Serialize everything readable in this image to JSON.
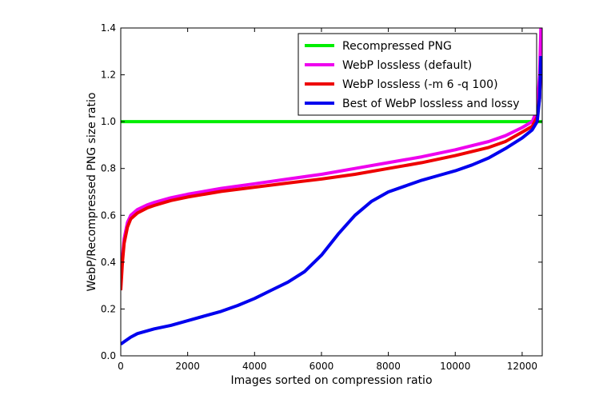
{
  "chart_data": {
    "type": "line",
    "title": "",
    "xlabel": "Images sorted on compression ratio",
    "ylabel": "WebP/Recompressed PNG size ratio",
    "xlim": [
      0,
      12600
    ],
    "ylim": [
      0.0,
      1.4
    ],
    "xticks": [
      0,
      2000,
      4000,
      6000,
      8000,
      10000,
      12000
    ],
    "yticks": [
      0.0,
      0.2,
      0.4,
      0.6,
      0.8,
      1.0,
      1.2,
      1.4
    ],
    "grid": false,
    "legend_position": "top-right",
    "series": [
      {
        "name": "Recompressed PNG",
        "color": "#00ee00",
        "x": [
          0,
          12600
        ],
        "y": [
          1.0,
          1.0
        ]
      },
      {
        "name": "WebP lossless (default)",
        "color": "#ee00ee",
        "x": [
          0,
          50,
          100,
          200,
          300,
          500,
          800,
          1000,
          1500,
          2000,
          3000,
          4000,
          5000,
          6000,
          7000,
          8000,
          9000,
          10000,
          11000,
          11500,
          12000,
          12300,
          12450,
          12520,
          12560
        ],
        "y": [
          0.3,
          0.42,
          0.5,
          0.57,
          0.6,
          0.625,
          0.645,
          0.655,
          0.675,
          0.69,
          0.715,
          0.735,
          0.755,
          0.775,
          0.8,
          0.825,
          0.85,
          0.88,
          0.915,
          0.94,
          0.975,
          1.0,
          1.05,
          1.2,
          1.4
        ]
      },
      {
        "name": "WebP lossless (-m 6 -q 100)",
        "color": "#ee0000",
        "x": [
          0,
          50,
          100,
          200,
          300,
          500,
          800,
          1000,
          1500,
          2000,
          3000,
          4000,
          5000,
          6000,
          7000,
          8000,
          9000,
          10000,
          11000,
          11500,
          12000,
          12300,
          12450,
          12520,
          12560
        ],
        "y": [
          0.28,
          0.4,
          0.48,
          0.55,
          0.585,
          0.61,
          0.632,
          0.642,
          0.663,
          0.678,
          0.702,
          0.72,
          0.738,
          0.755,
          0.775,
          0.8,
          0.825,
          0.855,
          0.89,
          0.915,
          0.955,
          0.98,
          1.02,
          1.1,
          1.25
        ]
      },
      {
        "name": "Best of WebP lossless and lossy",
        "color": "#0000ee",
        "x": [
          0,
          100,
          300,
          500,
          1000,
          1500,
          2000,
          2500,
          3000,
          3500,
          4000,
          4500,
          5000,
          5500,
          6000,
          6500,
          7000,
          7500,
          8000,
          8500,
          9000,
          9500,
          10000,
          10500,
          11000,
          11500,
          12000,
          12300,
          12450,
          12520,
          12560
        ],
        "y": [
          0.05,
          0.06,
          0.08,
          0.095,
          0.115,
          0.13,
          0.15,
          0.17,
          0.19,
          0.215,
          0.245,
          0.28,
          0.315,
          0.36,
          0.43,
          0.52,
          0.6,
          0.66,
          0.7,
          0.725,
          0.75,
          0.77,
          0.79,
          0.815,
          0.845,
          0.885,
          0.93,
          0.965,
          1.0,
          1.1,
          1.28
        ]
      }
    ]
  }
}
